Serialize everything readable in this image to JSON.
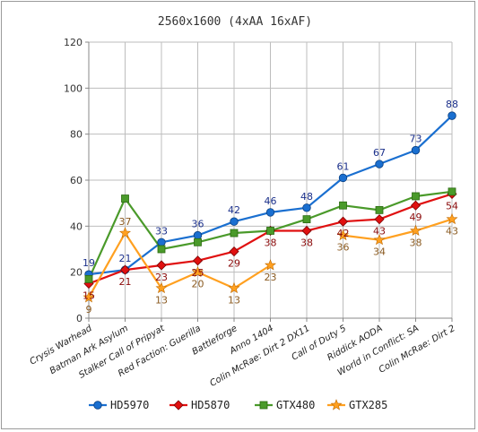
{
  "chart_data": {
    "type": "line",
    "title": "2560x1600 (4xAA 16xAF)",
    "xlabel": "",
    "ylabel": "",
    "ylim": [
      0,
      120
    ],
    "yticks": [
      0,
      20,
      40,
      60,
      80,
      100,
      120
    ],
    "grid": true,
    "legend_position": "bottom",
    "categories": [
      "Crysis Warhead",
      "Batman Ark Asylum",
      "Stalker Call of Pripyat",
      "Red Faction: Guerilla",
      "Battleforge",
      "Anno 1404",
      "Colin McRae: Dirt 2 DX11",
      "Call of Duty 5",
      "Riddick AODA",
      "World in Conflict: SA",
      "Colin McRae: Dirt 2"
    ],
    "series": [
      {
        "name": "HD5970",
        "color": "#1a6fd0",
        "marker": "circle",
        "label_color": "#1a2f8a",
        "values": [
          19,
          21,
          33,
          36,
          42,
          46,
          48,
          61,
          67,
          73,
          88
        ],
        "labels": [
          "19",
          "21",
          "33",
          "36",
          "42",
          "46",
          "48",
          "61",
          "67",
          "73",
          "88"
        ]
      },
      {
        "name": "HD5870",
        "color": "#e01010",
        "marker": "diamond",
        "label_color": "#8a0a0a",
        "values": [
          15,
          21,
          23,
          25,
          29,
          38,
          38,
          42,
          43,
          49,
          54
        ],
        "labels": [
          "15",
          "21",
          "23",
          "25",
          "29",
          "38",
          "38",
          "42",
          "43",
          "49",
          "54"
        ]
      },
      {
        "name": "GTX480",
        "color": "#4a9a2a",
        "marker": "square",
        "label_color": "#2a5a10",
        "values": [
          17,
          52,
          30,
          33,
          37,
          38,
          43,
          49,
          47,
          53,
          55
        ],
        "labels": []
      },
      {
        "name": "GTX285",
        "color": "#ffa020",
        "marker": "star",
        "label_color": "#8a5a20",
        "values": [
          9,
          37,
          13,
          20,
          13,
          23,
          null,
          36,
          34,
          38,
          43
        ],
        "labels": [
          "9",
          "37",
          "13",
          "20",
          "13",
          "23",
          "",
          "36",
          "34",
          "38",
          "43"
        ]
      }
    ]
  }
}
